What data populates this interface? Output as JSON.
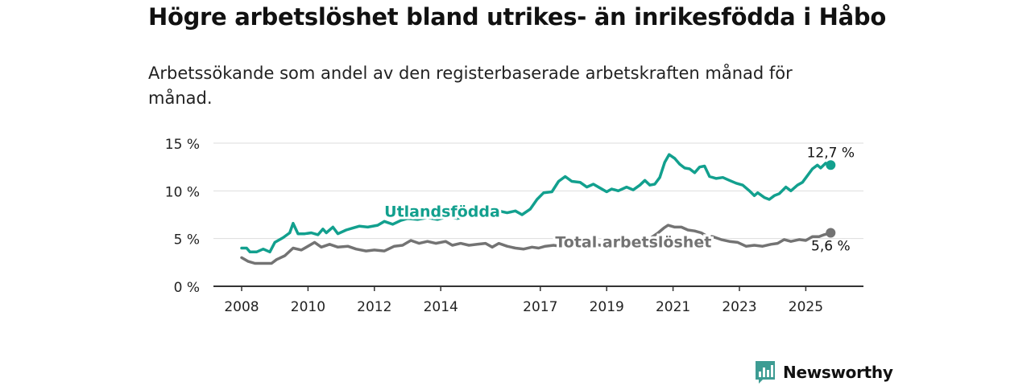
{
  "title": "Högre arbetslöshet bland utrikes- än inrikesfödda i Håbo",
  "subtitle": "Arbetssökande som andel av den registerbaserade arbetskraften månad för månad.",
  "logo": {
    "text": "Newsworthy",
    "icon": "newsworthy-logo-icon",
    "color": "#3d9c93"
  },
  "chart_data": {
    "type": "line",
    "ylim": [
      0,
      15
    ],
    "xlim": [
      2007.92,
      2025.95
    ],
    "yticks": [
      0,
      5,
      10,
      15
    ],
    "ytick_labels": [
      "0 %",
      "5 %",
      "10 %",
      "15 %"
    ],
    "xticks": [
      2008,
      2010,
      2012,
      2014,
      2017,
      2019,
      2021,
      2023,
      2025
    ],
    "xtick_labels": [
      "2008",
      "2010",
      "2012",
      "2014",
      "2017",
      "2019",
      "2021",
      "2023",
      "2025"
    ],
    "grid": true,
    "series": [
      {
        "name": "Utlandsfödda",
        "color": "#12a08e",
        "end_label": "12,7 %",
        "points": [
          [
            2008.0,
            4.0
          ],
          [
            2008.15,
            4.0
          ],
          [
            2008.25,
            3.6
          ],
          [
            2008.45,
            3.6
          ],
          [
            2008.65,
            3.9
          ],
          [
            2008.85,
            3.6
          ],
          [
            2009.0,
            4.6
          ],
          [
            2009.25,
            5.1
          ],
          [
            2009.45,
            5.6
          ],
          [
            2009.55,
            6.6
          ],
          [
            2009.7,
            5.5
          ],
          [
            2009.9,
            5.5
          ],
          [
            2010.1,
            5.6
          ],
          [
            2010.3,
            5.4
          ],
          [
            2010.45,
            6.0
          ],
          [
            2010.55,
            5.6
          ],
          [
            2010.75,
            6.2
          ],
          [
            2010.9,
            5.5
          ],
          [
            2011.15,
            5.9
          ],
          [
            2011.35,
            6.1
          ],
          [
            2011.55,
            6.3
          ],
          [
            2011.8,
            6.2
          ],
          [
            2012.1,
            6.4
          ],
          [
            2012.3,
            6.8
          ],
          [
            2012.55,
            6.5
          ],
          [
            2012.8,
            6.9
          ],
          [
            2013.0,
            7.1
          ],
          [
            2013.3,
            7.0
          ],
          [
            2013.6,
            7.2
          ],
          [
            2013.9,
            7.0
          ],
          [
            2014.2,
            7.3
          ],
          [
            2014.5,
            7.1
          ],
          [
            2014.8,
            7.4
          ],
          [
            2015.0,
            7.5
          ],
          [
            2015.25,
            7.8
          ],
          [
            2015.5,
            7.6
          ],
          [
            2015.75,
            7.9
          ],
          [
            2016.0,
            7.7
          ],
          [
            2016.25,
            7.9
          ],
          [
            2016.45,
            7.5
          ],
          [
            2016.7,
            8.1
          ],
          [
            2016.9,
            9.1
          ],
          [
            2017.1,
            9.8
          ],
          [
            2017.35,
            9.9
          ],
          [
            2017.55,
            11.0
          ],
          [
            2017.75,
            11.5
          ],
          [
            2017.95,
            11.0
          ],
          [
            2018.2,
            10.9
          ],
          [
            2018.4,
            10.4
          ],
          [
            2018.6,
            10.7
          ],
          [
            2018.8,
            10.3
          ],
          [
            2019.0,
            9.9
          ],
          [
            2019.15,
            10.2
          ],
          [
            2019.35,
            10.0
          ],
          [
            2019.6,
            10.4
          ],
          [
            2019.8,
            10.1
          ],
          [
            2020.0,
            10.6
          ],
          [
            2020.15,
            11.1
          ],
          [
            2020.3,
            10.6
          ],
          [
            2020.45,
            10.7
          ],
          [
            2020.6,
            11.4
          ],
          [
            2020.75,
            13.0
          ],
          [
            2020.88,
            13.8
          ],
          [
            2021.05,
            13.4
          ],
          [
            2021.2,
            12.8
          ],
          [
            2021.35,
            12.4
          ],
          [
            2021.5,
            12.3
          ],
          [
            2021.65,
            11.9
          ],
          [
            2021.8,
            12.5
          ],
          [
            2021.95,
            12.6
          ],
          [
            2022.1,
            11.5
          ],
          [
            2022.3,
            11.3
          ],
          [
            2022.5,
            11.4
          ],
          [
            2022.7,
            11.1
          ],
          [
            2022.9,
            10.8
          ],
          [
            2023.1,
            10.6
          ],
          [
            2023.3,
            10.0
          ],
          [
            2023.45,
            9.5
          ],
          [
            2023.55,
            9.8
          ],
          [
            2023.75,
            9.3
          ],
          [
            2023.9,
            9.1
          ],
          [
            2024.05,
            9.5
          ],
          [
            2024.2,
            9.7
          ],
          [
            2024.4,
            10.4
          ],
          [
            2024.55,
            10.0
          ],
          [
            2024.75,
            10.6
          ],
          [
            2024.9,
            10.9
          ],
          [
            2025.05,
            11.6
          ],
          [
            2025.2,
            12.3
          ],
          [
            2025.35,
            12.7
          ],
          [
            2025.45,
            12.4
          ],
          [
            2025.6,
            12.9
          ],
          [
            2025.75,
            12.7
          ]
        ]
      },
      {
        "name": "Total arbetslöshet",
        "color": "#737373",
        "end_label": "5,6 %",
        "points": [
          [
            2008.0,
            3.0
          ],
          [
            2008.2,
            2.6
          ],
          [
            2008.4,
            2.4
          ],
          [
            2008.6,
            2.4
          ],
          [
            2008.9,
            2.4
          ],
          [
            2009.05,
            2.8
          ],
          [
            2009.3,
            3.2
          ],
          [
            2009.55,
            4.0
          ],
          [
            2009.8,
            3.8
          ],
          [
            2010.0,
            4.2
          ],
          [
            2010.2,
            4.6
          ],
          [
            2010.4,
            4.1
          ],
          [
            2010.65,
            4.4
          ],
          [
            2010.9,
            4.1
          ],
          [
            2011.2,
            4.2
          ],
          [
            2011.45,
            3.9
          ],
          [
            2011.75,
            3.7
          ],
          [
            2012.0,
            3.8
          ],
          [
            2012.3,
            3.7
          ],
          [
            2012.6,
            4.2
          ],
          [
            2012.85,
            4.3
          ],
          [
            2013.1,
            4.8
          ],
          [
            2013.35,
            4.5
          ],
          [
            2013.6,
            4.7
          ],
          [
            2013.85,
            4.5
          ],
          [
            2014.15,
            4.7
          ],
          [
            2014.35,
            4.3
          ],
          [
            2014.6,
            4.5
          ],
          [
            2014.85,
            4.3
          ],
          [
            2015.1,
            4.4
          ],
          [
            2015.35,
            4.5
          ],
          [
            2015.55,
            4.1
          ],
          [
            2015.75,
            4.5
          ],
          [
            2016.0,
            4.2
          ],
          [
            2016.25,
            4.0
          ],
          [
            2016.5,
            3.9
          ],
          [
            2016.75,
            4.1
          ],
          [
            2016.95,
            4.0
          ],
          [
            2017.15,
            4.2
          ],
          [
            2017.4,
            4.3
          ],
          [
            2017.6,
            4.2
          ],
          [
            2017.8,
            4.4
          ],
          [
            2018.05,
            4.2
          ],
          [
            2018.3,
            4.3
          ],
          [
            2018.55,
            4.5
          ],
          [
            2018.8,
            4.3
          ],
          [
            2019.05,
            4.6
          ],
          [
            2019.3,
            4.4
          ],
          [
            2019.55,
            4.6
          ],
          [
            2019.8,
            4.4
          ],
          [
            2020.05,
            4.7
          ],
          [
            2020.3,
            5.0
          ],
          [
            2020.55,
            5.6
          ],
          [
            2020.72,
            6.1
          ],
          [
            2020.85,
            6.4
          ],
          [
            2021.05,
            6.2
          ],
          [
            2021.25,
            6.2
          ],
          [
            2021.45,
            5.9
          ],
          [
            2021.65,
            5.8
          ],
          [
            2021.85,
            5.6
          ],
          [
            2022.0,
            5.3
          ],
          [
            2022.2,
            5.2
          ],
          [
            2022.45,
            4.9
          ],
          [
            2022.7,
            4.7
          ],
          [
            2022.95,
            4.6
          ],
          [
            2023.2,
            4.2
          ],
          [
            2023.45,
            4.3
          ],
          [
            2023.7,
            4.2
          ],
          [
            2023.95,
            4.4
          ],
          [
            2024.15,
            4.5
          ],
          [
            2024.35,
            4.9
          ],
          [
            2024.55,
            4.7
          ],
          [
            2024.8,
            4.9
          ],
          [
            2025.0,
            4.8
          ],
          [
            2025.2,
            5.2
          ],
          [
            2025.4,
            5.2
          ],
          [
            2025.55,
            5.4
          ],
          [
            2025.75,
            5.6
          ]
        ]
      }
    ],
    "annotations": [
      {
        "text": "Utlandsfödda",
        "series": 0
      },
      {
        "text": "Total arbetslöshet",
        "series": 1
      }
    ]
  }
}
